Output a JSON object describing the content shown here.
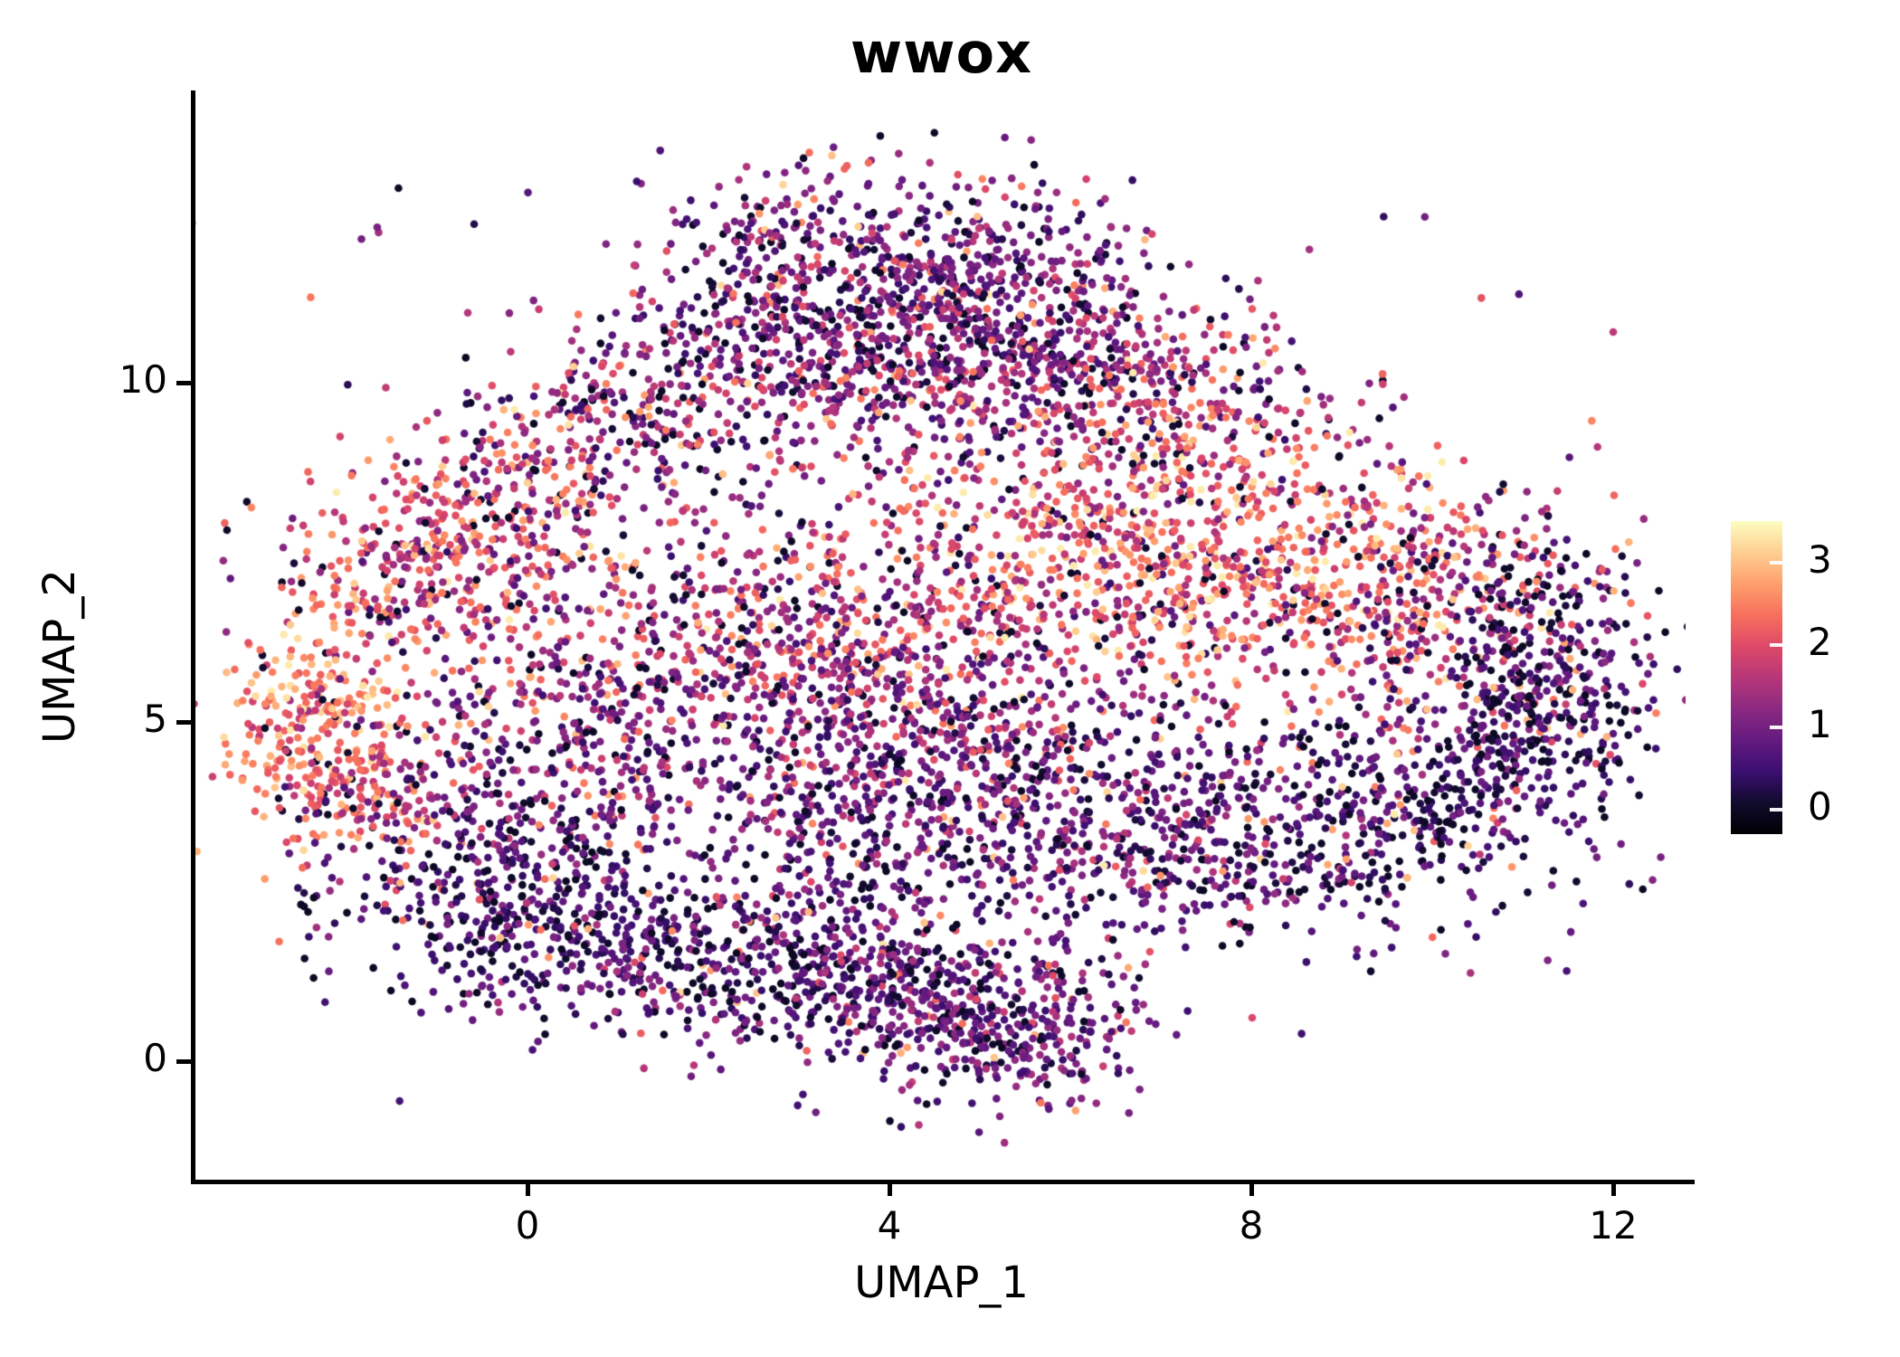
{
  "chart": {
    "title": "wwox",
    "xlabel": "UMAP_1",
    "ylabel": "UMAP_2"
  },
  "chart_data": {
    "type": "scatter",
    "title": "wwox",
    "xlabel": "UMAP_1",
    "ylabel": "UMAP_2",
    "x_ticks": [
      0,
      4,
      8,
      12
    ],
    "y_ticks": [
      0,
      5,
      10
    ],
    "xlim": [
      -3.7,
      12.8
    ],
    "ylim": [
      -1.8,
      13.8
    ],
    "grid": false,
    "point_radius_px": 4.3,
    "colorbar": {
      "position": "right",
      "ticks": [
        3,
        2,
        1,
        0
      ],
      "value_min": -0.3,
      "value_max": 3.5,
      "colormap": "magma",
      "stops": [
        [
          0.0,
          "#000004"
        ],
        [
          0.1,
          "#110b2d"
        ],
        [
          0.2,
          "#3b0f70"
        ],
        [
          0.3,
          "#641a80"
        ],
        [
          0.4,
          "#8c2981"
        ],
        [
          0.5,
          "#b73779"
        ],
        [
          0.6,
          "#de4968"
        ],
        [
          0.7,
          "#f7705c"
        ],
        [
          0.8,
          "#fe9f6d"
        ],
        [
          0.9,
          "#fecf92"
        ],
        [
          1.0,
          "#fcfdbf"
        ]
      ]
    },
    "seed": 42,
    "noise": {
      "zero_frac": 0.07,
      "high_frac": 0.05
    },
    "cluster_fields": [
      "center_x",
      "center_y",
      "sd_x",
      "sd_y",
      "n_points",
      "expr_mean",
      "expr_sd"
    ],
    "clusters": [
      [
        4.5,
        6.8,
        3.3,
        2.8,
        420,
        1.3,
        0.8
      ],
      [
        3.6,
        11.7,
        1.15,
        0.75,
        480,
        0.9,
        0.55
      ],
      [
        5.1,
        11.1,
        0.9,
        0.8,
        300,
        1.0,
        0.6
      ],
      [
        2.6,
        10.4,
        1.0,
        0.7,
        260,
        1.0,
        0.6
      ],
      [
        4.2,
        10.0,
        1.3,
        0.6,
        220,
        1.1,
        0.65
      ],
      [
        6.0,
        10.2,
        1.1,
        0.7,
        240,
        1.2,
        0.7
      ],
      [
        7.4,
        9.6,
        1.1,
        0.7,
        220,
        1.5,
        0.8
      ],
      [
        0.9,
        9.3,
        1.0,
        0.65,
        220,
        1.3,
        0.8
      ],
      [
        -0.4,
        8.2,
        0.8,
        0.7,
        210,
        1.8,
        0.7
      ],
      [
        -1.3,
        7.2,
        0.8,
        0.6,
        260,
        2.0,
        0.7
      ],
      [
        -2.45,
        5.1,
        0.55,
        0.85,
        260,
        2.4,
        0.55
      ],
      [
        -1.8,
        3.9,
        0.55,
        0.55,
        130,
        2.1,
        0.6
      ],
      [
        7.0,
        7.9,
        1.6,
        0.95,
        500,
        2.2,
        0.7
      ],
      [
        9.1,
        6.9,
        1.3,
        0.9,
        400,
        2.1,
        0.75
      ],
      [
        5.6,
        6.8,
        1.3,
        0.85,
        340,
        1.8,
        0.8
      ],
      [
        10.7,
        6.3,
        0.8,
        0.8,
        190,
        1.0,
        0.8
      ],
      [
        11.5,
        6.1,
        0.5,
        0.8,
        130,
        0.6,
        0.5
      ],
      [
        2.4,
        6.4,
        1.5,
        0.8,
        330,
        1.5,
        0.8
      ],
      [
        3.6,
        5.5,
        0.9,
        0.7,
        220,
        1.1,
        0.6
      ],
      [
        0.8,
        5.1,
        1.0,
        0.9,
        220,
        1.2,
        0.7
      ],
      [
        3.2,
        3.7,
        1.6,
        0.95,
        380,
        0.9,
        0.55
      ],
      [
        6.0,
        3.5,
        1.3,
        0.9,
        340,
        0.8,
        0.55
      ],
      [
        4.9,
        4.8,
        0.8,
        0.6,
        150,
        1.0,
        0.6
      ],
      [
        -0.6,
        2.5,
        0.9,
        0.8,
        270,
        0.45,
        0.45
      ],
      [
        0.6,
        1.7,
        0.9,
        0.6,
        200,
        0.55,
        0.45
      ],
      [
        2.8,
        1.5,
        1.2,
        0.75,
        430,
        0.7,
        0.5
      ],
      [
        4.2,
        1.0,
        0.8,
        0.6,
        240,
        0.8,
        0.5
      ],
      [
        5.4,
        0.5,
        0.7,
        0.6,
        280,
        0.9,
        0.5
      ],
      [
        8.0,
        3.4,
        1.5,
        0.9,
        400,
        0.6,
        0.5
      ],
      [
        10.0,
        3.9,
        1.0,
        0.8,
        300,
        0.45,
        0.45
      ],
      [
        11.1,
        4.9,
        0.6,
        0.7,
        180,
        0.5,
        0.45
      ],
      [
        0.0,
        3.9,
        1.0,
        0.8,
        180,
        0.8,
        0.5
      ]
    ]
  }
}
